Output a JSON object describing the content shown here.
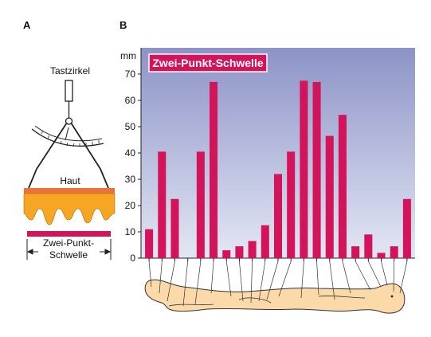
{
  "panel_a": {
    "letter": "A",
    "caliper_label": "Tastzirkel",
    "skin_label": "Haut",
    "threshold_label_line1": "Zwei-Punkt-",
    "threshold_label_line2": "Schwelle"
  },
  "panel_b": {
    "letter": "B"
  },
  "chart_data": {
    "type": "bar",
    "title": "Zwei-Punkt-Schwelle",
    "ylabel": "mm",
    "xlabel": "",
    "ylim": [
      0,
      80
    ],
    "yticks": [
      0,
      10,
      20,
      30,
      40,
      50,
      60,
      70
    ],
    "grid": false,
    "values": [
      11,
      40.5,
      22.5,
      0,
      40.5,
      67,
      3,
      4.5,
      6.5,
      12.5,
      32,
      40.5,
      67.5,
      67,
      46.5,
      54.5,
      4.5,
      9,
      2,
      4.5,
      22.5
    ],
    "colors": {
      "bar": "#d4145a",
      "background_top": "#8d93c7",
      "background_bottom": "#dfe3f2",
      "skin_orange": "#f5a623",
      "skin_top": "#e8743b",
      "body_fill": "#fcd9a8"
    }
  }
}
